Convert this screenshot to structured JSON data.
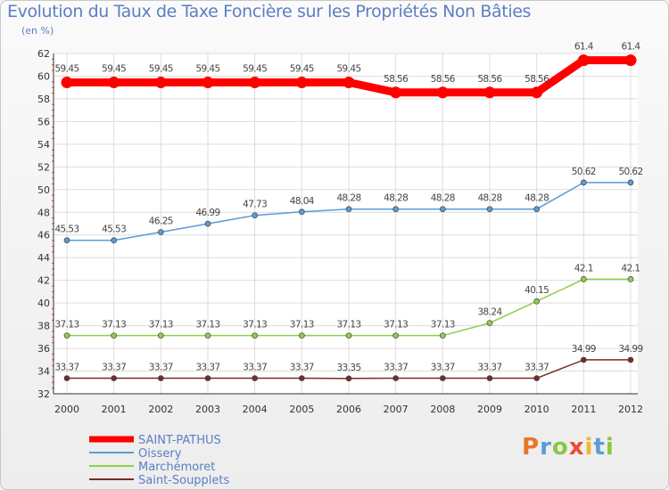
{
  "chart_data": {
    "type": "line",
    "title": "Evolution du Taux de Taxe Foncière sur les Propriétés Non Bâties",
    "subtitle": "(en %)",
    "x": [
      "2000",
      "2001",
      "2002",
      "2003",
      "2004",
      "2005",
      "2006",
      "2007",
      "2008",
      "2009",
      "2010",
      "2011",
      "2012"
    ],
    "ylim": [
      32,
      62
    ],
    "yticks": [
      32,
      34,
      36,
      38,
      40,
      42,
      44,
      46,
      48,
      50,
      52,
      54,
      56,
      58,
      60,
      62
    ],
    "grid": true,
    "series": [
      {
        "name": "SAINT-PATHUS",
        "color": "#ff0000",
        "values": [
          59.45,
          59.45,
          59.45,
          59.45,
          59.45,
          59.45,
          59.45,
          58.56,
          58.56,
          58.56,
          58.56,
          61.4,
          61.4
        ],
        "labels": [
          "59.45",
          "59.45",
          "59.45",
          "59.45",
          "59.45",
          "59.45",
          "59.45",
          "58.56",
          "58.56",
          "58.56",
          "58.56",
          "61.4",
          "61.4"
        ]
      },
      {
        "name": "Oissery",
        "color": "#5b9bd5",
        "values": [
          45.53,
          45.53,
          46.25,
          46.99,
          47.73,
          48.04,
          48.28,
          48.28,
          48.28,
          48.28,
          48.28,
          50.62,
          50.62
        ],
        "labels": [
          "45.53",
          "45.53",
          "46.25",
          "46.99",
          "47.73",
          "48.04",
          "48.28",
          "48.28",
          "48.28",
          "48.28",
          "48.28",
          "50.62",
          "50.62"
        ]
      },
      {
        "name": "Marchémoret",
        "color": "#8cd04a",
        "values": [
          37.13,
          37.13,
          37.13,
          37.13,
          37.13,
          37.13,
          37.13,
          37.13,
          37.13,
          38.24,
          40.15,
          42.1,
          42.1
        ],
        "labels": [
          "37.13",
          "37.13",
          "37.13",
          "37.13",
          "37.13",
          "37.13",
          "37.13",
          "37.13",
          "37.13",
          "38.24",
          "40.15",
          "42.1",
          "42.1"
        ]
      },
      {
        "name": "Saint-Soupplets",
        "color": "#7a2a2a",
        "values": [
          33.37,
          33.37,
          33.37,
          33.37,
          33.37,
          33.37,
          33.35,
          33.37,
          33.37,
          33.37,
          33.37,
          34.99,
          34.99
        ],
        "labels": [
          "33.37",
          "33.37",
          "33.37",
          "33.37",
          "33.37",
          "33.37",
          "33.35",
          "33.37",
          "33.37",
          "33.37",
          "33.37",
          "34.99",
          "34.99"
        ]
      }
    ]
  },
  "logo": {
    "letters": [
      "P",
      "r",
      "o",
      "x",
      "i",
      "t",
      "i"
    ]
  }
}
